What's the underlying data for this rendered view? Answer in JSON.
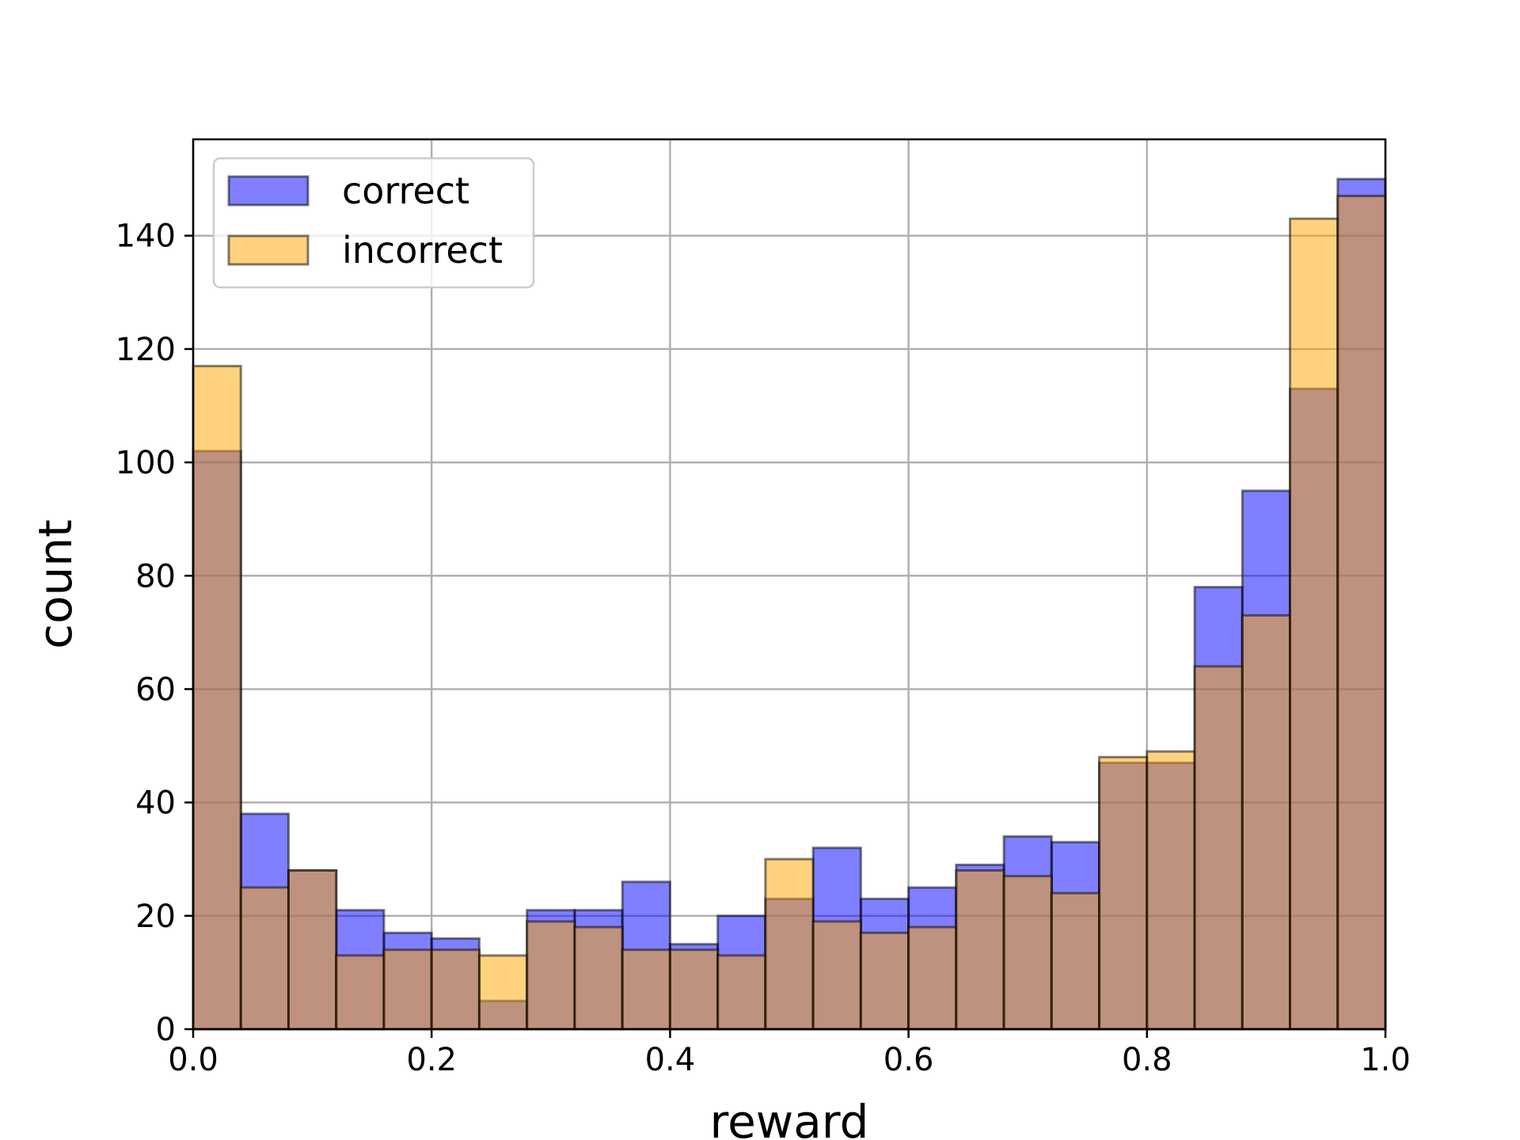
{
  "chart_data": {
    "type": "bar",
    "subtype": "overlaid-histogram",
    "title": "",
    "xlabel": "reward",
    "ylabel": "count",
    "xlim": [
      0.0,
      1.0
    ],
    "ylim": [
      0,
      157
    ],
    "bin_width": 0.04,
    "bin_starts": [
      0.0,
      0.04,
      0.08,
      0.12,
      0.16,
      0.2,
      0.24,
      0.28,
      0.32,
      0.36,
      0.4,
      0.44,
      0.48,
      0.52,
      0.56,
      0.6,
      0.64,
      0.68,
      0.72,
      0.76,
      0.8,
      0.84,
      0.88,
      0.92,
      0.96
    ],
    "x_ticks": [
      "0.0",
      "0.2",
      "0.4",
      "0.6",
      "0.8",
      "1.0"
    ],
    "x_tick_values": [
      0.0,
      0.2,
      0.4,
      0.6,
      0.8,
      1.0
    ],
    "y_ticks": [
      "0",
      "20",
      "40",
      "60",
      "80",
      "100",
      "120",
      "140"
    ],
    "y_tick_values": [
      0,
      20,
      40,
      60,
      80,
      100,
      120,
      140
    ],
    "grid": true,
    "legend_placement": "top-left",
    "series": [
      {
        "name": "correct",
        "color": "#0000ff",
        "opacity": 0.5,
        "values": [
          102,
          38,
          28,
          21,
          17,
          16,
          5,
          21,
          21,
          26,
          15,
          20,
          23,
          32,
          23,
          25,
          29,
          34,
          33,
          47,
          47,
          78,
          95,
          113,
          150
        ]
      },
      {
        "name": "incorrect",
        "color": "#ffa500",
        "opacity": 0.5,
        "values": [
          117,
          25,
          28,
          13,
          14,
          14,
          13,
          19,
          18,
          14,
          14,
          13,
          30,
          19,
          17,
          18,
          28,
          27,
          24,
          48,
          49,
          64,
          73,
          143,
          147
        ]
      }
    ]
  }
}
